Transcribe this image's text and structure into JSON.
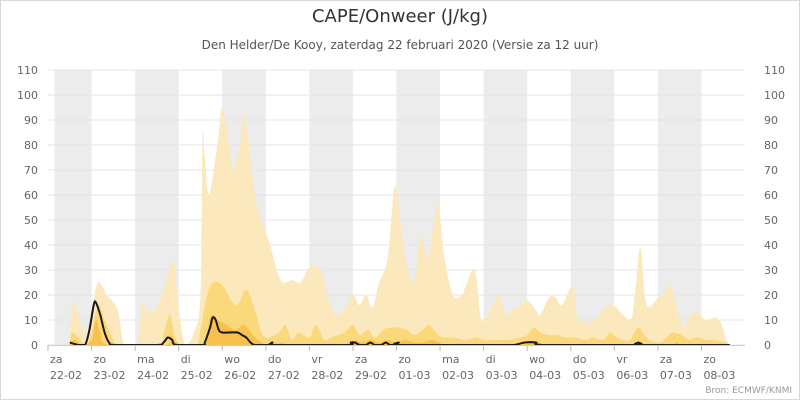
{
  "title": "CAPE/Onweer (J/kg)",
  "subtitle": "Den Helder/De Kooy, zaterdag 22 februari 2020 (Versie za 12 uur)",
  "credits": "Bron: ECMWF/KNMI",
  "colors": {
    "band_outer": "#fbe9bd",
    "band_middle": "#fbd87a",
    "band_inner": "#f8c04c",
    "median_line": "#1a1a1a",
    "weekend_band": "#ececec",
    "gridline": "#e4e4e4",
    "axis_text": "#666666"
  },
  "chart_data": {
    "type": "area",
    "title": "CAPE/Onweer (J/kg)",
    "subtitle": "Den Helder/De Kooy, zaterdag 22 februari 2020 (Versie za 12 uur)",
    "xlabel": "",
    "ylabel": "",
    "x_range": [
      0,
      16
    ],
    "ylim": [
      0,
      110
    ],
    "y_ticks": [
      0,
      10,
      20,
      30,
      40,
      50,
      60,
      70,
      80,
      90,
      100,
      110
    ],
    "y_axis_both_sides": true,
    "grid": true,
    "legend": "none",
    "x_tick_labels": [
      {
        "x": 0,
        "day": "za",
        "date": "22-02"
      },
      {
        "x": 1,
        "day": "zo",
        "date": "23-02"
      },
      {
        "x": 2,
        "day": "ma",
        "date": "24-02"
      },
      {
        "x": 3,
        "day": "di",
        "date": "25-02"
      },
      {
        "x": 4,
        "day": "wo",
        "date": "26-02"
      },
      {
        "x": 5,
        "day": "do",
        "date": "27-02"
      },
      {
        "x": 6,
        "day": "vr",
        "date": "28-02"
      },
      {
        "x": 7,
        "day": "za",
        "date": "29-02"
      },
      {
        "x": 8,
        "day": "zo",
        "date": "01-03"
      },
      {
        "x": 9,
        "day": "ma",
        "date": "02-03"
      },
      {
        "x": 10,
        "day": "di",
        "date": "03-03"
      },
      {
        "x": 11,
        "day": "wo",
        "date": "04-03"
      },
      {
        "x": 12,
        "day": "do",
        "date": "05-03"
      },
      {
        "x": 13,
        "day": "vr",
        "date": "06-03"
      },
      {
        "x": 14,
        "day": "za",
        "date": "07-03"
      },
      {
        "x": 15,
        "day": "zo",
        "date": "08-03"
      }
    ],
    "shaded_day_bands": [
      [
        0.15,
        1
      ],
      [
        2,
        3
      ],
      [
        4,
        5
      ],
      [
        6,
        7
      ],
      [
        8,
        9
      ],
      [
        10,
        11
      ],
      [
        12,
        13
      ],
      [
        14,
        15
      ]
    ],
    "series": [
      {
        "role": "band_outer",
        "points": [
          [
            0.5,
            0
          ],
          [
            0.55,
            17
          ],
          [
            0.7,
            12
          ],
          [
            0.85,
            5
          ],
          [
            1.0,
            14
          ],
          [
            1.15,
            25
          ],
          [
            1.35,
            20
          ],
          [
            1.6,
            14
          ],
          [
            1.75,
            0
          ],
          [
            2.05,
            0
          ],
          [
            2.15,
            16
          ],
          [
            2.3,
            13
          ],
          [
            2.5,
            15
          ],
          [
            2.65,
            22
          ],
          [
            2.8,
            31
          ],
          [
            2.9,
            33
          ],
          [
            3.0,
            15
          ],
          [
            3.15,
            0
          ],
          [
            3.35,
            5
          ],
          [
            3.5,
            20
          ],
          [
            3.55,
            83
          ],
          [
            3.6,
            75
          ],
          [
            3.7,
            60
          ],
          [
            3.9,
            82
          ],
          [
            4.0,
            95
          ],
          [
            4.15,
            80
          ],
          [
            4.25,
            70
          ],
          [
            4.4,
            80
          ],
          [
            4.5,
            92
          ],
          [
            4.55,
            90
          ],
          [
            4.75,
            60
          ],
          [
            5.0,
            45
          ],
          [
            5.1,
            40
          ],
          [
            5.25,
            30
          ],
          [
            5.4,
            25
          ],
          [
            5.6,
            26
          ],
          [
            5.8,
            25
          ],
          [
            6.0,
            31
          ],
          [
            6.25,
            30
          ],
          [
            6.45,
            18
          ],
          [
            6.6,
            12
          ],
          [
            6.8,
            14
          ],
          [
            7.0,
            20
          ],
          [
            7.15,
            16
          ],
          [
            7.3,
            20
          ],
          [
            7.45,
            15
          ],
          [
            7.6,
            25
          ],
          [
            7.8,
            35
          ],
          [
            7.95,
            63
          ],
          [
            8.05,
            55
          ],
          [
            8.2,
            35
          ],
          [
            8.4,
            25
          ],
          [
            8.55,
            44
          ],
          [
            8.7,
            35
          ],
          [
            8.8,
            42
          ],
          [
            8.95,
            57
          ],
          [
            9.1,
            35
          ],
          [
            9.3,
            20
          ],
          [
            9.5,
            20
          ],
          [
            9.6,
            24
          ],
          [
            9.8,
            30
          ],
          [
            9.95,
            10
          ],
          [
            10.15,
            14
          ],
          [
            10.35,
            20
          ],
          [
            10.5,
            12
          ],
          [
            10.65,
            14
          ],
          [
            10.85,
            16
          ],
          [
            11.0,
            18
          ],
          [
            11.2,
            14
          ],
          [
            11.3,
            12
          ],
          [
            11.5,
            19
          ],
          [
            11.65,
            19
          ],
          [
            11.8,
            16
          ],
          [
            12.05,
            24
          ],
          [
            12.15,
            11
          ],
          [
            12.35,
            9
          ],
          [
            12.55,
            10
          ],
          [
            12.7,
            13
          ],
          [
            12.85,
            16
          ],
          [
            13.05,
            15
          ],
          [
            13.2,
            12
          ],
          [
            13.4,
            11
          ],
          [
            13.5,
            25
          ],
          [
            13.6,
            39
          ],
          [
            13.7,
            20
          ],
          [
            13.8,
            15
          ],
          [
            14.0,
            19
          ],
          [
            14.2,
            22
          ],
          [
            14.3,
            24
          ],
          [
            14.45,
            14
          ],
          [
            14.6,
            7
          ],
          [
            14.75,
            12
          ],
          [
            14.9,
            13
          ],
          [
            15.1,
            10
          ],
          [
            15.3,
            11
          ],
          [
            15.45,
            9
          ],
          [
            15.55,
            3
          ],
          [
            15.65,
            0
          ]
        ]
      },
      {
        "role": "band_middle",
        "points": [
          [
            0.5,
            0
          ],
          [
            0.55,
            5
          ],
          [
            0.7,
            3
          ],
          [
            0.85,
            0
          ],
          [
            1.0,
            5
          ],
          [
            1.15,
            16
          ],
          [
            1.3,
            10
          ],
          [
            1.45,
            4
          ],
          [
            1.65,
            0
          ],
          [
            2.6,
            0
          ],
          [
            2.65,
            4
          ],
          [
            2.8,
            12
          ],
          [
            2.9,
            4
          ],
          [
            3.05,
            0
          ],
          [
            3.4,
            0
          ],
          [
            3.5,
            6
          ],
          [
            3.65,
            20
          ],
          [
            3.8,
            25
          ],
          [
            4.0,
            24
          ],
          [
            4.2,
            18
          ],
          [
            4.35,
            16
          ],
          [
            4.55,
            22
          ],
          [
            4.75,
            14
          ],
          [
            4.9,
            5
          ],
          [
            5.05,
            3
          ],
          [
            5.3,
            5
          ],
          [
            5.45,
            8
          ],
          [
            5.6,
            2
          ],
          [
            5.75,
            5
          ],
          [
            6.0,
            3
          ],
          [
            6.15,
            8
          ],
          [
            6.35,
            2
          ],
          [
            6.5,
            3
          ],
          [
            6.8,
            5
          ],
          [
            7.0,
            8
          ],
          [
            7.15,
            4
          ],
          [
            7.35,
            6
          ],
          [
            7.5,
            3
          ],
          [
            7.7,
            6
          ],
          [
            7.85,
            7
          ],
          [
            8.05,
            7
          ],
          [
            8.25,
            6
          ],
          [
            8.4,
            4
          ],
          [
            8.6,
            6
          ],
          [
            8.75,
            8
          ],
          [
            8.95,
            4
          ],
          [
            9.1,
            3
          ],
          [
            9.3,
            3
          ],
          [
            9.6,
            2
          ],
          [
            9.85,
            3
          ],
          [
            10.0,
            2
          ],
          [
            10.3,
            2
          ],
          [
            10.6,
            2
          ],
          [
            10.8,
            3
          ],
          [
            11.0,
            4
          ],
          [
            11.15,
            7
          ],
          [
            11.3,
            5
          ],
          [
            11.5,
            4
          ],
          [
            11.7,
            4
          ],
          [
            11.85,
            3
          ],
          [
            12.1,
            3
          ],
          [
            12.35,
            2
          ],
          [
            12.5,
            3
          ],
          [
            12.75,
            2
          ],
          [
            12.9,
            5
          ],
          [
            13.05,
            3
          ],
          [
            13.2,
            2
          ],
          [
            13.35,
            2
          ],
          [
            13.55,
            7
          ],
          [
            13.65,
            5
          ],
          [
            13.8,
            2
          ],
          [
            14.05,
            1
          ],
          [
            14.2,
            3
          ],
          [
            14.35,
            5
          ],
          [
            14.55,
            4
          ],
          [
            14.7,
            2
          ],
          [
            14.9,
            3
          ],
          [
            15.1,
            2
          ],
          [
            15.3,
            2
          ],
          [
            15.55,
            1
          ],
          [
            15.65,
            0
          ]
        ]
      },
      {
        "role": "band_inner",
        "points": [
          [
            0.5,
            0
          ],
          [
            0.6,
            2
          ],
          [
            0.8,
            0
          ],
          [
            1.0,
            2
          ],
          [
            1.1,
            10
          ],
          [
            1.2,
            5
          ],
          [
            1.4,
            0
          ],
          [
            2.7,
            0
          ],
          [
            2.8,
            4
          ],
          [
            2.95,
            1
          ],
          [
            3.1,
            0
          ],
          [
            3.55,
            0
          ],
          [
            3.65,
            5
          ],
          [
            3.75,
            12
          ],
          [
            3.9,
            10
          ],
          [
            4.1,
            8
          ],
          [
            4.3,
            6
          ],
          [
            4.5,
            8
          ],
          [
            4.7,
            4
          ],
          [
            4.9,
            1
          ],
          [
            5.1,
            0
          ],
          [
            5.4,
            1
          ],
          [
            5.6,
            0
          ],
          [
            6.95,
            0
          ],
          [
            7.05,
            2
          ],
          [
            7.2,
            1
          ],
          [
            7.4,
            2
          ],
          [
            7.6,
            1
          ],
          [
            7.8,
            2
          ],
          [
            8.0,
            1
          ],
          [
            8.2,
            2
          ],
          [
            8.4,
            1
          ],
          [
            8.6,
            1
          ],
          [
            8.8,
            2
          ],
          [
            9.0,
            1
          ],
          [
            9.2,
            0
          ],
          [
            10.8,
            0
          ],
          [
            11.0,
            1
          ],
          [
            11.15,
            1
          ],
          [
            11.3,
            1
          ],
          [
            11.6,
            0
          ],
          [
            13.5,
            0
          ],
          [
            13.6,
            1
          ],
          [
            13.7,
            0
          ],
          [
            14.3,
            0
          ],
          [
            14.45,
            1
          ],
          [
            14.6,
            0
          ],
          [
            15.65,
            0
          ]
        ]
      },
      {
        "role": "median_line",
        "points": [
          [
            0.5,
            1
          ],
          [
            0.7,
            0
          ],
          [
            0.85,
            0
          ],
          [
            0.95,
            6
          ],
          [
            1.05,
            16
          ],
          [
            1.1,
            17
          ],
          [
            1.2,
            12
          ],
          [
            1.3,
            5
          ],
          [
            1.4,
            1
          ],
          [
            1.55,
            0
          ],
          [
            2.5,
            0
          ],
          [
            2.65,
            1
          ],
          [
            2.75,
            3
          ],
          [
            2.85,
            2
          ],
          [
            2.95,
            0
          ],
          [
            3.55,
            0
          ],
          [
            3.6,
            1
          ],
          [
            3.72,
            7
          ],
          [
            3.78,
            11
          ],
          [
            3.85,
            10
          ],
          [
            3.92,
            6
          ],
          [
            4.0,
            5
          ],
          [
            4.15,
            5
          ],
          [
            4.35,
            5
          ],
          [
            4.45,
            4
          ],
          [
            4.55,
            3
          ],
          [
            4.65,
            1
          ],
          [
            4.75,
            0
          ],
          [
            5.05,
            0
          ],
          [
            5.15,
            1
          ],
          [
            5.25,
            0
          ],
          [
            6.85,
            0
          ],
          [
            6.95,
            1
          ],
          [
            7.05,
            1
          ],
          [
            7.15,
            0
          ],
          [
            7.3,
            0
          ],
          [
            7.4,
            1
          ],
          [
            7.5,
            0
          ],
          [
            7.65,
            0
          ],
          [
            7.75,
            1
          ],
          [
            7.85,
            0
          ],
          [
            7.95,
            0
          ],
          [
            8.05,
            1
          ],
          [
            8.15,
            0
          ],
          [
            10.5,
            0
          ],
          [
            10.7,
            0
          ],
          [
            10.95,
            1
          ],
          [
            11.2,
            1
          ],
          [
            11.4,
            0
          ],
          [
            13.45,
            0
          ],
          [
            13.55,
            1
          ],
          [
            13.65,
            0
          ],
          [
            15.65,
            0
          ]
        ]
      }
    ]
  }
}
